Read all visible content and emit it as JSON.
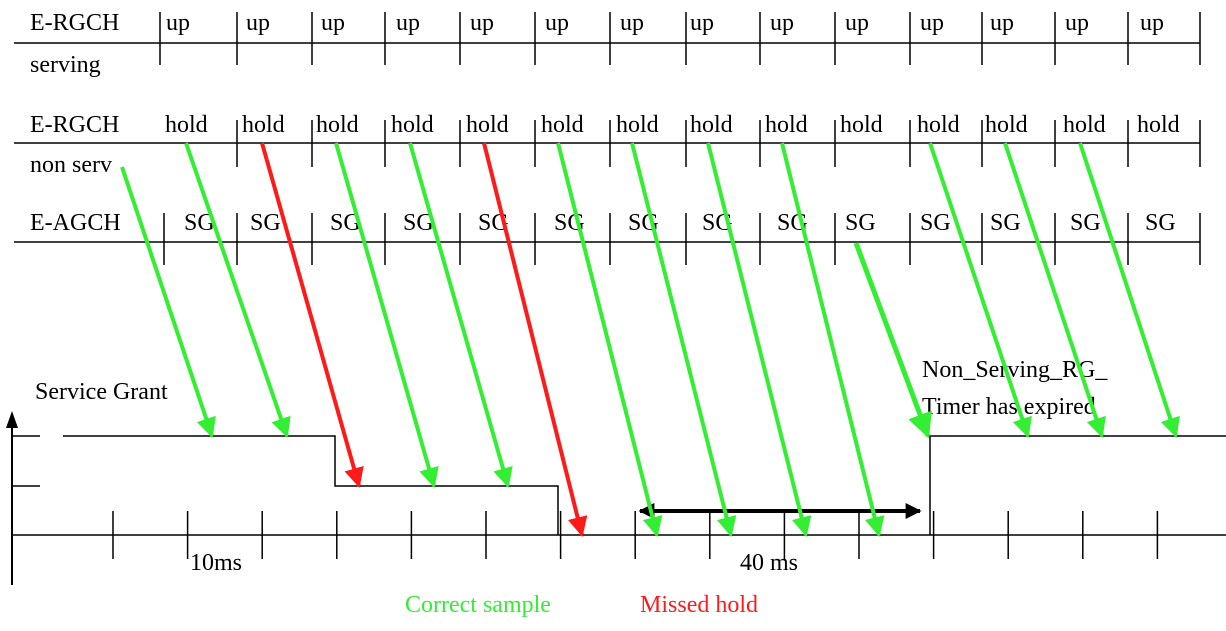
{
  "rows": {
    "serving": {
      "label_line1": "E-RGCH",
      "label_line2": "serving",
      "cells": [
        "up",
        "up",
        "up",
        "up",
        "up",
        "up",
        "up",
        "up",
        "up",
        "up",
        "up",
        "up",
        "up",
        "up"
      ]
    },
    "non_serving": {
      "label_line1": "E-RGCH",
      "label_line2": "non serv",
      "cells": [
        "hold",
        "hold",
        "hold",
        "hold",
        "hold",
        "hold",
        "hold",
        "hold",
        "hold",
        "hold",
        "hold",
        "hold",
        "hold",
        "hold"
      ]
    },
    "agch": {
      "label_line1": "E-AGCH",
      "cells": [
        "SG",
        "SG",
        "SG",
        "SG",
        "SG",
        "SG",
        "SG",
        "SG",
        "SG",
        "SG",
        "SG",
        "SG",
        "SG",
        "SG"
      ]
    }
  },
  "annotations": {
    "service_grant": "Service Grant",
    "timer_line1": "Non_Serving_RG_",
    "timer_line2": "Timer has expired",
    "ten_ms": "10ms",
    "forty_ms": "40 ms"
  },
  "legend": {
    "correct": "Correct sample",
    "missed": "Missed hold"
  },
  "colors": {
    "correct": "#33ee33",
    "missed": "#ff1a1a",
    "line": "#000000"
  },
  "arrow_kinds": [
    "correct",
    "correct",
    "missed",
    "correct",
    "correct",
    "missed",
    "correct",
    "correct",
    "correct",
    "correct",
    "correct",
    "correct",
    "correct",
    "correct"
  ]
}
